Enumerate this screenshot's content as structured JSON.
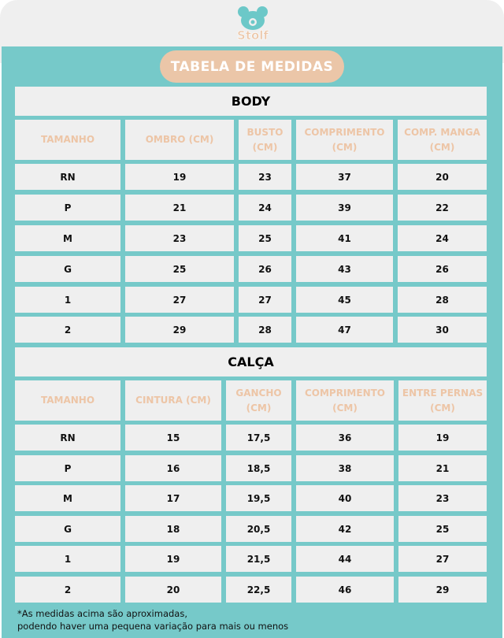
{
  "logo": {
    "text": "Stolf",
    "icon": "teddy-bear-icon",
    "colors": {
      "bear": "#6cc8c8",
      "text": "#ebc6a8"
    }
  },
  "badge": "TABELA DE MEDIDAS",
  "colors": {
    "panel": "#76c9c9",
    "cell": "#efefef",
    "header_text": "#edc5a6",
    "badge": "#ebc6a8"
  },
  "body": {
    "title": "BODY",
    "headers": [
      "TAMANHO",
      "OMBRO (CM)",
      "BUSTO (CM)",
      "COMPRIMENTO (CM)",
      "COMP. MANGA (CM)"
    ],
    "rows": [
      [
        "RN",
        "19",
        "23",
        "37",
        "20"
      ],
      [
        "P",
        "21",
        "24",
        "39",
        "22"
      ],
      [
        "M",
        "23",
        "25",
        "41",
        "24"
      ],
      [
        "G",
        "25",
        "26",
        "43",
        "26"
      ],
      [
        "1",
        "27",
        "27",
        "45",
        "28"
      ],
      [
        "2",
        "29",
        "28",
        "47",
        "30"
      ]
    ]
  },
  "calca": {
    "title": "CALÇA",
    "headers": [
      "TAMANHO",
      "CINTURA (CM)",
      "GANCHO (CM)",
      "COMPRIMENTO (CM)",
      "ENTRE PERNAS (CM)"
    ],
    "rows": [
      [
        "RN",
        "15",
        "17,5",
        "36",
        "19"
      ],
      [
        "P",
        "16",
        "18,5",
        "38",
        "21"
      ],
      [
        "M",
        "17",
        "19,5",
        "40",
        "23"
      ],
      [
        "G",
        "18",
        "20,5",
        "42",
        "25"
      ],
      [
        "1",
        "19",
        "21,5",
        "44",
        "27"
      ],
      [
        "2",
        "20",
        "22,5",
        "46",
        "29"
      ]
    ]
  },
  "footnote": [
    "*As medidas acima são aproximadas,",
    "podendo haver uma pequena variação para mais ou menos"
  ]
}
